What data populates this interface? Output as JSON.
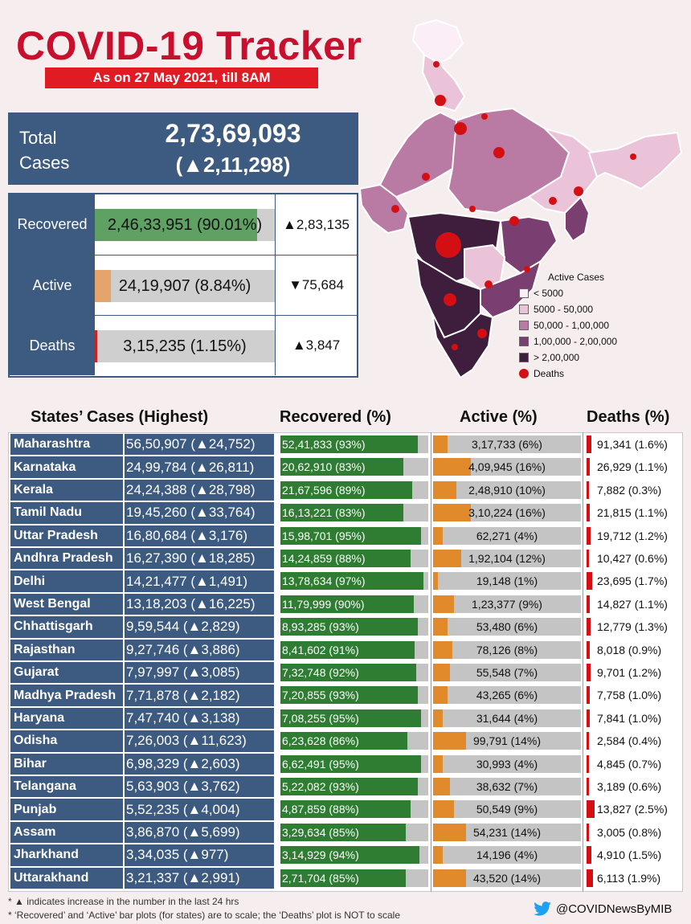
{
  "header": {
    "title": "COVID-19 Tracker",
    "date_banner": "As on 27 May 2021, till 8AM"
  },
  "total": {
    "label": "Total Cases",
    "value": "2,73,69,093",
    "delta": "(▲2,11,298)"
  },
  "summary": [
    {
      "label": "Recovered",
      "value": "2,46,33,951 (90.01%)",
      "delta": "▲2,83,135",
      "fraction": 0.9001,
      "color": "#5fa163"
    },
    {
      "label": "Active",
      "value": "24,19,907 (8.84%)",
      "delta": "▼75,684",
      "fraction": 0.0884,
      "color": "#e5a46b"
    },
    {
      "label": "Deaths",
      "value": "3,15,235 (1.15%)",
      "delta": "▲3,847",
      "fraction": 0.0115,
      "color": "#cc2222"
    }
  ],
  "legend": {
    "title": "Active Cases",
    "items": [
      {
        "label": "< 5000",
        "color": "#fbeef6"
      },
      {
        "label": "5000 - 50,000",
        "color": "#ebc3d9"
      },
      {
        "label": "50,000 - 1,00,000",
        "color": "#b97aa4"
      },
      {
        "label": "1,00,000 - 2,00,000",
        "color": "#7a3f70"
      },
      {
        "label": "> 2,00,000",
        "color": "#3e1d3d"
      }
    ],
    "deaths_label": "Deaths"
  },
  "table_headers": {
    "states": "States’ Cases (Highest)",
    "recovered": "Recovered (%)",
    "active": "Active (%)",
    "deaths": "Deaths (%)"
  },
  "chart_data": {
    "type": "table",
    "columns": [
      "State",
      "Cases",
      "Recovered",
      "Active",
      "Deaths"
    ],
    "rows": [
      {
        "state": "Maharashtra",
        "cases": "56,50,907 (▲24,752)",
        "recovered": "52,41,833 (93%)",
        "rec_pct": 93,
        "active": "3,17,733 (6%)",
        "act_pct": 6,
        "deaths": "91,341 (1.6%)",
        "death_pct": 1.6
      },
      {
        "state": "Karnataka",
        "cases": "24,99,784 (▲26,811)",
        "recovered": "20,62,910 (83%)",
        "rec_pct": 83,
        "active": "4,09,945 (16%)",
        "act_pct": 16,
        "deaths": "26,929 (1.1%)",
        "death_pct": 1.1
      },
      {
        "state": "Kerala",
        "cases": "24,24,388 (▲28,798)",
        "recovered": "21,67,596 (89%)",
        "rec_pct": 89,
        "active": "2,48,910 (10%)",
        "act_pct": 10,
        "deaths": "7,882 (0.3%)",
        "death_pct": 0.3
      },
      {
        "state": "Tamil Nadu",
        "cases": "19,45,260 (▲33,764)",
        "recovered": "16,13,221 (83%)",
        "rec_pct": 83,
        "active": "3,10,224 (16%)",
        "act_pct": 16,
        "deaths": "21,815 (1.1%)",
        "death_pct": 1.1
      },
      {
        "state": "Uttar Pradesh",
        "cases": "16,80,684 (▲3,176)",
        "recovered": "15,98,701 (95%)",
        "rec_pct": 95,
        "active": "62,271 (4%)",
        "act_pct": 4,
        "deaths": "19,712 (1.2%)",
        "death_pct": 1.2
      },
      {
        "state": "Andhra Pradesh",
        "cases": "16,27,390 (▲18,285)",
        "recovered": "14,24,859 (88%)",
        "rec_pct": 88,
        "active": "1,92,104 (12%)",
        "act_pct": 12,
        "deaths": "10,427 (0.6%)",
        "death_pct": 0.6
      },
      {
        "state": "Delhi",
        "cases": "14,21,477 (▲1,491)",
        "recovered": "13,78,634 (97%)",
        "rec_pct": 97,
        "active": "19,148 (1%)",
        "act_pct": 1,
        "deaths": "23,695 (1.7%)",
        "death_pct": 1.7
      },
      {
        "state": "West Bengal",
        "cases": "13,18,203 (▲16,225)",
        "recovered": "11,79,999 (90%)",
        "rec_pct": 90,
        "active": "1,23,377 (9%)",
        "act_pct": 9,
        "deaths": "14,827 (1.1%)",
        "death_pct": 1.1
      },
      {
        "state": "Chhattisgarh",
        "cases": "9,59,544 (▲2,829)",
        "recovered": "8,93,285 (93%)",
        "rec_pct": 93,
        "active": "53,480 (6%)",
        "act_pct": 6,
        "deaths": "12,779 (1.3%)",
        "death_pct": 1.3
      },
      {
        "state": "Rajasthan",
        "cases": "9,27,746 (▲3,886)",
        "recovered": "8,41,602 (91%)",
        "rec_pct": 91,
        "active": "78,126 (8%)",
        "act_pct": 8,
        "deaths": "8,018 (0.9%)",
        "death_pct": 0.9
      },
      {
        "state": "Gujarat",
        "cases": "7,97,997 (▲3,085)",
        "recovered": "7,32,748 (92%)",
        "rec_pct": 92,
        "active": "55,548 (7%)",
        "act_pct": 7,
        "deaths": "9,701 (1.2%)",
        "death_pct": 1.2
      },
      {
        "state": "Madhya Pradesh",
        "cases": "7,71,878 (▲2,182)",
        "recovered": "7,20,855 (93%)",
        "rec_pct": 93,
        "active": "43,265 (6%)",
        "act_pct": 6,
        "deaths": "7,758 (1.0%)",
        "death_pct": 1.0
      },
      {
        "state": "Haryana",
        "cases": "7,47,740 (▲3,138)",
        "recovered": "7,08,255 (95%)",
        "rec_pct": 95,
        "active": "31,644 (4%)",
        "act_pct": 4,
        "deaths": "7,841 (1.0%)",
        "death_pct": 1.0
      },
      {
        "state": "Odisha",
        "cases": "7,26,003 (▲11,623)",
        "recovered": "6,23,628 (86%)",
        "rec_pct": 86,
        "active": "99,791 (14%)",
        "act_pct": 14,
        "deaths": "2,584 (0.4%)",
        "death_pct": 0.4
      },
      {
        "state": "Bihar",
        "cases": "6,98,329 (▲2,603)",
        "recovered": "6,62,491 (95%)",
        "rec_pct": 95,
        "active": "30,993 (4%)",
        "act_pct": 4,
        "deaths": "4,845 (0.7%)",
        "death_pct": 0.7
      },
      {
        "state": "Telangana",
        "cases": "5,63,903 (▲3,762)",
        "recovered": "5,22,082 (93%)",
        "rec_pct": 93,
        "active": "38,632 (7%)",
        "act_pct": 7,
        "deaths": "3,189 (0.6%)",
        "death_pct": 0.6
      },
      {
        "state": "Punjab",
        "cases": "5,52,235 (▲4,004)",
        "recovered": "4,87,859 (88%)",
        "rec_pct": 88,
        "active": "50,549 (9%)",
        "act_pct": 9,
        "deaths": "13,827 (2.5%)",
        "death_pct": 2.5
      },
      {
        "state": "Assam",
        "cases": "3,86,870 (▲5,699)",
        "recovered": "3,29,634 (85%)",
        "rec_pct": 85,
        "active": "54,231 (14%)",
        "act_pct": 14,
        "deaths": "3,005 (0.8%)",
        "death_pct": 0.8
      },
      {
        "state": "Jharkhand",
        "cases": "3,34,035 (▲977)",
        "recovered": "3,14,929 (94%)",
        "rec_pct": 94,
        "active": "14,196 (4%)",
        "act_pct": 4,
        "deaths": "4,910 (1.5%)",
        "death_pct": 1.5
      },
      {
        "state": "Uttarakhand",
        "cases": "3,21,337 (▲2,991)",
        "recovered": "2,71,704 (85%)",
        "rec_pct": 85,
        "active": "43,520 (14%)",
        "act_pct": 14,
        "deaths": "6,113 (1.9%)",
        "death_pct": 1.9
      }
    ]
  },
  "notes": [
    "* ▲ indicates increase in the number in the last 24 hrs",
    "* ‘Recovered’ and ‘Active’ bar plots (for states) are to scale; the ‘Deaths’ plot is NOT to scale"
  ],
  "twitter_handle": "@COVIDNewsByMIB"
}
